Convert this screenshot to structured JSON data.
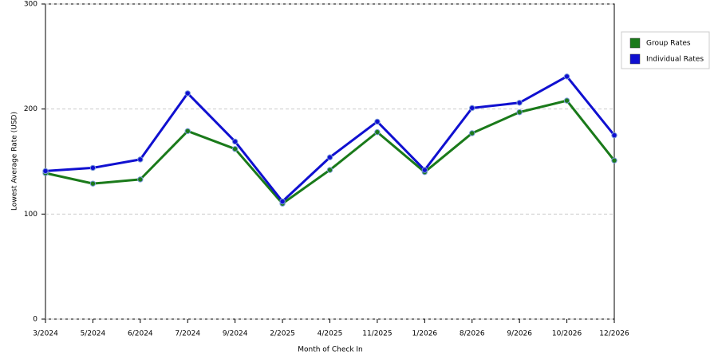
{
  "chart_data": {
    "type": "line",
    "x_label": "Month of Check In",
    "y_label": "Lowest Average Rate (USD)",
    "categories": [
      "3/2024",
      "5/2024",
      "6/2024",
      "7/2024",
      "9/2024",
      "2/2025",
      "4/2025",
      "11/2025",
      "1/2026",
      "8/2026",
      "9/2026",
      "10/2026",
      "12/2026"
    ],
    "series": [
      {
        "name": "Group Rates",
        "color": "#1a7a1a",
        "values": [
          139,
          129,
          133,
          179,
          162,
          110,
          142,
          178,
          140,
          177,
          197,
          208,
          151
        ]
      },
      {
        "name": "Individual Rates",
        "color": "#1010d0",
        "values": [
          141,
          144,
          152,
          215,
          169,
          112,
          154,
          188,
          142,
          201,
          206,
          231,
          175
        ]
      }
    ],
    "ylim": [
      0,
      300
    ],
    "yticks": [
      0,
      100,
      200,
      300
    ],
    "grid": true,
    "legend": "right"
  }
}
